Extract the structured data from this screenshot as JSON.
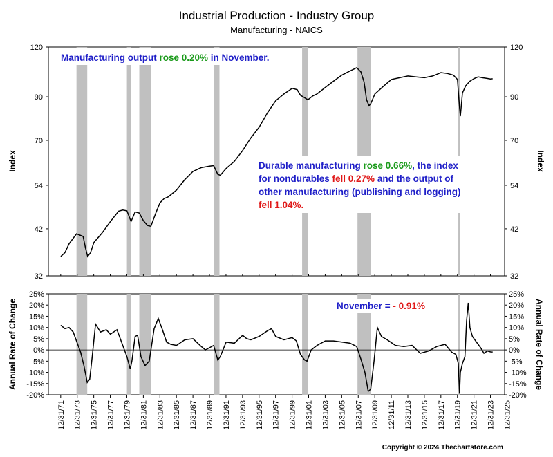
{
  "title": "Industrial Production - Industry Group",
  "subtitle": "Manufacturing - NAICS",
  "copyright": "Copyright © 2024 Thechartstore.com",
  "colors": {
    "recession": "#c0c0c0",
    "line": "#000000",
    "blue": "#1f1fc8",
    "green": "#1a9a1a",
    "red": "#e01818",
    "zero_line": "#000000"
  },
  "chart_data": [
    {
      "type": "line",
      "name": "top-panel",
      "ylabel": "Index",
      "yscale": "log",
      "y_ticks": [
        32,
        42,
        54,
        70,
        90,
        120
      ],
      "y_tick_labels": [
        "32",
        "42",
        "54",
        "70",
        "90",
        "120"
      ],
      "ylim": [
        32,
        120
      ],
      "xlim": [
        1970.5,
        2025.7
      ],
      "recessions": [
        [
          1973.9,
          1975.2
        ],
        [
          1980.0,
          1980.5
        ],
        [
          1981.5,
          1982.9
        ],
        [
          1990.5,
          1991.2
        ],
        [
          2001.2,
          2001.9
        ],
        [
          2007.9,
          2009.5
        ],
        [
          2020.1,
          2020.3
        ]
      ],
      "x": [
        1972.0,
        1972.5,
        1973.0,
        1973.9,
        1974.3,
        1974.7,
        1975.0,
        1975.25,
        1975.6,
        1976.0,
        1977.0,
        1978.0,
        1979.0,
        1979.5,
        1980.0,
        1980.5,
        1981.0,
        1981.5,
        1982.0,
        1982.5,
        1982.9,
        1983.5,
        1984.0,
        1984.5,
        1985.0,
        1986.0,
        1987.0,
        1988.0,
        1989.0,
        1990.0,
        1990.5,
        1991.0,
        1991.3,
        1992.0,
        1993.0,
        1994.0,
        1995.0,
        1996.0,
        1997.0,
        1998.0,
        1999.0,
        2000.0,
        2000.6,
        2001.0,
        2001.5,
        2001.9,
        2002.5,
        2003.0,
        2004.0,
        2005.0,
        2006.0,
        2007.0,
        2007.8,
        2008.3,
        2008.7,
        2009.0,
        2009.3,
        2009.5,
        2010.0,
        2011.0,
        2012.0,
        2013.0,
        2014.0,
        2015.0,
        2016.0,
        2017.0,
        2018.0,
        2018.8,
        2019.5,
        2020.0,
        2020.25,
        2020.35,
        2020.6,
        2021.0,
        2021.5,
        2022.0,
        2022.5,
        2023.0,
        2023.5,
        2024.0,
        2024.25
      ],
      "y": [
        35.8,
        36.6,
        38.5,
        40.8,
        40.5,
        40.2,
        37.5,
        35.8,
        36.6,
        38.8,
        41.0,
        43.8,
        46.5,
        46.8,
        46.6,
        43.8,
        46.3,
        46.0,
        44.0,
        42.8,
        42.6,
        46.0,
        48.8,
        50.0,
        50.5,
        52.5,
        55.8,
        58.5,
        59.8,
        60.3,
        60.5,
        57.5,
        57.2,
        59.5,
        62.0,
        66.0,
        71.0,
        75.5,
        82.0,
        88.0,
        91.5,
        94.5,
        93.8,
        90.8,
        89.5,
        88.5,
        90.5,
        91.5,
        95.0,
        98.5,
        102.0,
        104.5,
        106.5,
        104.0,
        98.0,
        88.5,
        85.5,
        86.5,
        91.5,
        95.5,
        99.5,
        100.5,
        101.5,
        101.0,
        100.5,
        101.5,
        103.5,
        103.0,
        102.0,
        99.5,
        84.5,
        80.5,
        92.0,
        96.0,
        98.5,
        100.0,
        101.0,
        100.5,
        100.2,
        99.8,
        99.9
      ]
    },
    {
      "type": "line",
      "name": "bottom-panel",
      "ylabel": "Annual Rate of Change",
      "y_ticks": [
        -20,
        -15,
        -10,
        -5,
        0,
        5,
        10,
        15,
        20,
        25
      ],
      "y_tick_labels": [
        "-20%",
        "-15%",
        "-10%",
        "-5%",
        "0%",
        "5%",
        "10%",
        "15%",
        "20%",
        "25%"
      ],
      "ylim": [
        -20,
        25
      ],
      "xlim": [
        1970.5,
        2025.7
      ],
      "recessions": [
        [
          1973.9,
          1975.2
        ],
        [
          1980.0,
          1980.5
        ],
        [
          1981.5,
          1982.9
        ],
        [
          1990.5,
          1991.2
        ],
        [
          2001.2,
          2001.9
        ],
        [
          2007.9,
          2009.5
        ],
        [
          2020.1,
          2020.3
        ]
      ],
      "x": [
        1972.0,
        1972.5,
        1973.0,
        1973.5,
        1974.0,
        1974.4,
        1974.8,
        1975.2,
        1975.5,
        1975.8,
        1976.2,
        1976.8,
        1977.5,
        1978.0,
        1978.8,
        1979.5,
        1980.0,
        1980.4,
        1980.6,
        1981.0,
        1981.3,
        1981.7,
        1982.2,
        1982.7,
        1983.3,
        1983.8,
        1984.3,
        1984.8,
        1985.3,
        1986.0,
        1987.0,
        1988.0,
        1989.0,
        1989.5,
        1990.0,
        1990.5,
        1991.0,
        1991.3,
        1992.0,
        1993.0,
        1994.0,
        1994.5,
        1995.0,
        1996.0,
        1997.0,
        1997.5,
        1998.0,
        1999.0,
        2000.0,
        2000.5,
        2001.0,
        2001.5,
        2001.8,
        2002.3,
        2003.0,
        2004.0,
        2005.0,
        2006.0,
        2007.0,
        2007.8,
        2008.3,
        2008.8,
        2009.2,
        2009.5,
        2009.9,
        2010.3,
        2010.8,
        2011.5,
        2012.5,
        2013.5,
        2014.5,
        2015.5,
        2016.5,
        2017.5,
        2018.5,
        2019.3,
        2019.8,
        2020.1,
        2020.25,
        2020.35,
        2020.6,
        2020.9,
        2021.1,
        2021.3,
        2021.5,
        2021.8,
        2022.3,
        2022.8,
        2023.2,
        2023.6,
        2024.0,
        2024.25
      ],
      "y": [
        11.0,
        9.5,
        10.0,
        8.0,
        3.0,
        -1.0,
        -7.0,
        -14.5,
        -13.0,
        -3.0,
        11.5,
        8.0,
        9.0,
        7.0,
        9.0,
        2.0,
        -3.0,
        -8.5,
        -5.0,
        6.0,
        6.5,
        -3.0,
        -7.0,
        -5.0,
        9.5,
        14.0,
        9.0,
        3.5,
        2.5,
        2.0,
        4.5,
        5.0,
        1.5,
        0.0,
        1.0,
        2.0,
        -4.5,
        -3.0,
        3.5,
        3.0,
        6.5,
        5.0,
        4.5,
        6.0,
        8.5,
        9.5,
        6.0,
        4.5,
        5.5,
        4.0,
        -2.0,
        -4.5,
        -5.0,
        0.0,
        2.0,
        4.0,
        4.0,
        3.5,
        3.0,
        1.5,
        -4.0,
        -10.0,
        -18.5,
        -17.5,
        -5.0,
        10.0,
        6.0,
        4.5,
        2.0,
        1.5,
        2.0,
        -1.5,
        -0.5,
        1.5,
        2.5,
        -1.0,
        -2.0,
        -6.0,
        -19.5,
        -10.0,
        -6.0,
        -3.0,
        13.0,
        21.0,
        10.0,
        6.0,
        3.5,
        1.0,
        -1.5,
        -0.5,
        -0.9,
        -0.91
      ]
    }
  ],
  "x_tick_labels": [
    "12/31/71",
    "12/31/73",
    "12/31/75",
    "12/31/77",
    "12/31/79",
    "12/31/81",
    "12/31/83",
    "12/31/85",
    "12/31/87",
    "12/31/89",
    "12/31/91",
    "12/31/93",
    "12/31/95",
    "12/31/97",
    "12/31/99",
    "12/31/01",
    "12/31/03",
    "12/31/05",
    "12/31/07",
    "12/31/09",
    "12/31/11",
    "12/31/13",
    "12/31/15",
    "12/31/17",
    "12/31/19",
    "12/31/21",
    "12/31/23",
    "12/31/25"
  ],
  "x_tick_years": [
    1971.99,
    1973.99,
    1975.99,
    1977.99,
    1979.99,
    1981.99,
    1983.99,
    1985.99,
    1987.99,
    1989.99,
    1991.99,
    1993.99,
    1995.99,
    1997.99,
    1999.99,
    2001.99,
    2003.99,
    2005.99,
    2007.99,
    2009.99,
    2011.99,
    2013.99,
    2015.99,
    2017.99,
    2019.99,
    2021.99,
    2023.99,
    2025.99
  ],
  "annotations": {
    "top": [
      {
        "text": "Manufacturing output ",
        "color": "blue"
      },
      {
        "text": "rose 0.20%",
        "color": "green"
      },
      {
        "text": " in November.",
        "color": "blue"
      }
    ],
    "middle_lines": [
      [
        {
          "text": "Durable manufacturing ",
          "color": "blue"
        },
        {
          "text": "rose 0.66%",
          "color": "green"
        },
        {
          "text": ", the index",
          "color": "blue"
        }
      ],
      [
        {
          "text": "for nondurables ",
          "color": "blue"
        },
        {
          "text": "fell 0.27%",
          "color": "red"
        },
        {
          "text": " and the output of",
          "color": "blue"
        }
      ],
      [
        {
          "text": "other manufacturing (publishing and logging)",
          "color": "blue"
        }
      ],
      [
        {
          "text": "fell 1.04%.",
          "color": "red"
        }
      ]
    ],
    "bottom": [
      {
        "text": "November = ",
        "color": "blue"
      },
      {
        "text": "- 0.91%",
        "color": "red"
      }
    ]
  }
}
